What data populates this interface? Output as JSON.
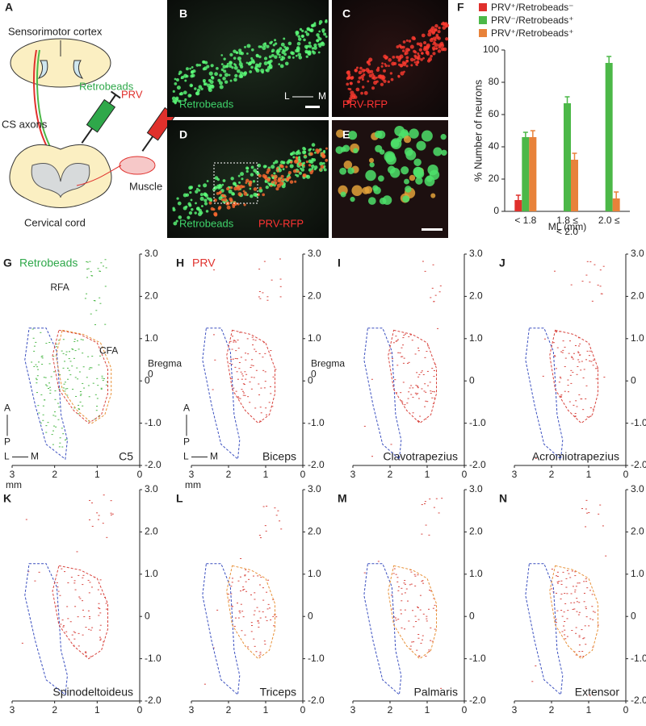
{
  "panel_a": {
    "letter": "A",
    "cortex": "Sensorimotor cortex",
    "beads": "Retrobeads",
    "prv": "PRV",
    "axons": "CS axons",
    "muscle": "Muscle",
    "cord": "Cervical cord"
  },
  "images": [
    {
      "letter": "B",
      "label": "Retrobeads",
      "lateral": "L",
      "medial": "M"
    },
    {
      "letter": "C",
      "label": "PRV-RFP"
    },
    {
      "letter": "D",
      "label": "Retrobeads",
      "label2": "PRV-RFP"
    },
    {
      "letter": "E"
    }
  ],
  "chart_data": {
    "type": "bar",
    "letter": "F",
    "categories": [
      "< 1.8",
      "1.8 ≤\n< 2.0",
      "2.0 ≤"
    ],
    "series": [
      {
        "name": "PRV⁺/Retrobeads⁻",
        "color": "#e0302c",
        "values": [
          7,
          0,
          0
        ],
        "errors": [
          3,
          0,
          0
        ]
      },
      {
        "name": "PRV⁻/Retrobeads⁺",
        "color": "#4cb848",
        "values": [
          46,
          67,
          92
        ],
        "errors": [
          3,
          4,
          4
        ]
      },
      {
        "name": "PRV⁺/Retrobeads⁺",
        "color": "#e8823a",
        "values": [
          46,
          32,
          8
        ],
        "errors": [
          4,
          4,
          4
        ]
      }
    ],
    "ylabel": "% Number of neurons",
    "xlabel": "ML (mm)",
    "ylim": [
      0,
      100
    ],
    "yticks": [
      0,
      20,
      40,
      60,
      80,
      100
    ]
  },
  "maps": {
    "xticks": [
      3,
      2,
      1,
      0
    ],
    "yticks": [
      {
        "value": 3,
        "label": "3.0"
      },
      {
        "value": 2,
        "label": "2.0"
      },
      {
        "value": 1,
        "label": "1.0"
      },
      {
        "value": 0,
        "label": "0"
      },
      {
        "value": -1,
        "label": "-1.0"
      },
      {
        "value": -2,
        "label": "-2.0"
      }
    ],
    "unit": "mm",
    "bregma": "Bregma",
    "bregma_value": "0",
    "rfa": "RFA",
    "cfa": "CFA",
    "anterior": "A",
    "posterior": "P",
    "lateral": "L",
    "medial": "M",
    "panels": [
      {
        "letter": "G",
        "tracer": "Retrobeads",
        "name": "C5"
      },
      {
        "letter": "H",
        "tracer": "PRV",
        "name": "Biceps"
      },
      {
        "letter": "I",
        "name": "Clavotrapezius"
      },
      {
        "letter": "J",
        "name": "Acromiotrapezius"
      },
      {
        "letter": "K",
        "name": "Spinodeltoideus"
      },
      {
        "letter": "L",
        "name": "Triceps"
      },
      {
        "letter": "M",
        "name": "Palmaris"
      },
      {
        "letter": "N",
        "name": "Extensor"
      }
    ]
  }
}
